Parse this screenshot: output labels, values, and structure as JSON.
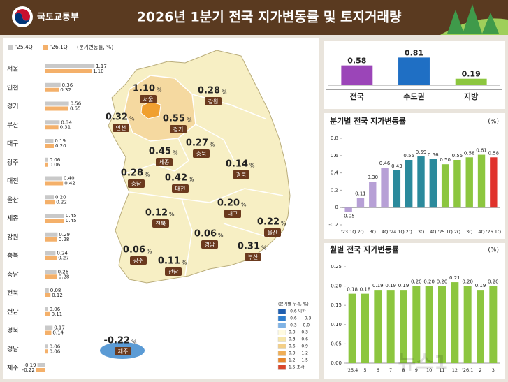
{
  "header": {
    "org": "국토교통부",
    "title": "2026년 1분기 전국 지가변동률 및 토지거래량"
  },
  "watermark": "뉴스1",
  "chart_data": [
    {
      "type": "hbar",
      "legend_note": "(분기변동률, %)",
      "categories": [
        "서울",
        "인천",
        "경기",
        "부산",
        "대구",
        "광주",
        "대전",
        "울산",
        "세종",
        "강원",
        "충북",
        "충남",
        "전북",
        "전남",
        "경북",
        "경남",
        "제주"
      ],
      "xlim": [
        -0.3,
        1.2
      ],
      "series": [
        {
          "name": "'25.4Q",
          "color": "#c9c9c9",
          "values": [
            1.17,
            0.36,
            0.56,
            0.34,
            0.19,
            0.06,
            0.4,
            0.2,
            0.45,
            0.29,
            0.24,
            0.26,
            0.08,
            0.06,
            0.17,
            0.06,
            -0.19
          ],
          "value_labels": [
            "1.17",
            "0.36",
            "0.56",
            "0.34",
            "0.19",
            "0.06",
            "0.40",
            "0.20",
            "0.45",
            "0.29",
            "0.24",
            "0.26",
            "0.08",
            "0.06",
            "0.17",
            "0.06",
            "-0.19"
          ]
        },
        {
          "name": "'26.1Q",
          "color": "#f4b06a",
          "values": [
            1.1,
            0.32,
            0.55,
            0.31,
            0.2,
            0.06,
            0.42,
            0.22,
            0.45,
            0.28,
            0.27,
            0.28,
            0.12,
            0.11,
            0.14,
            0.06,
            -0.22
          ],
          "value_labels": [
            "1.10",
            "0.32",
            "0.55",
            "0.31",
            "0.20",
            "0.06",
            "0.42",
            "0.22",
            "0.45",
            "0.28",
            "0.27",
            "0.28",
            "0.12",
            "0.11",
            "0.14",
            "0.06",
            "-0.22"
          ]
        }
      ]
    },
    {
      "type": "bar",
      "categories": [
        "전국",
        "수도권",
        "지방"
      ],
      "values": [
        0.58,
        0.81,
        0.19
      ],
      "ylim": [
        0,
        0.9
      ],
      "colors": [
        "#9b45b8",
        "#1f6fc4",
        "#8cc63f"
      ]
    },
    {
      "type": "bar",
      "title": "분기별 전국 지가변동률",
      "unit": "(%)",
      "categories": [
        "'23.1Q",
        "2Q",
        "3Q",
        "4Q",
        "'24.1Q",
        "2Q",
        "3Q",
        "4Q",
        "'25.1Q",
        "2Q",
        "3Q",
        "4Q",
        "'26.1Q"
      ],
      "values": [
        -0.05,
        0.11,
        0.3,
        0.46,
        0.43,
        0.55,
        0.59,
        0.56,
        0.5,
        0.55,
        0.58,
        0.61,
        0.58
      ],
      "value_labels": [
        "-0.05",
        "0.11",
        "0.30",
        "0.46",
        "0.43",
        "0.55",
        "0.59",
        "0.56",
        "0.50",
        "0.55",
        "0.58",
        "0.61",
        "0.58"
      ],
      "colors": [
        "#b7a0d6",
        "#b7a0d6",
        "#b7a0d6",
        "#b7a0d6",
        "#2b8a9c",
        "#2b8a9c",
        "#2b8a9c",
        "#2b8a9c",
        "#8cc63f",
        "#8cc63f",
        "#8cc63f",
        "#8cc63f",
        "#e0322c"
      ],
      "ylim": [
        -0.2,
        0.8
      ],
      "yticks": [
        -0.2,
        0,
        0.2,
        0.4,
        0.6,
        0.8
      ]
    },
    {
      "type": "bar",
      "title": "월별 전국 지가변동률",
      "unit": "(%)",
      "categories": [
        "'25.4",
        "5",
        "6",
        "7",
        "8",
        "9",
        "10",
        "11",
        "12",
        "'26.1",
        "2",
        "3"
      ],
      "values": [
        0.18,
        0.18,
        0.19,
        0.19,
        0.19,
        0.2,
        0.2,
        0.2,
        0.21,
        0.2,
        0.19,
        0.2
      ],
      "value_labels": [
        "0.18",
        "0.18",
        "0.19",
        "0.19",
        "0.19",
        "0.20",
        "0.20",
        "0.20",
        "0.21",
        "0.20",
        "0.19",
        "0.20"
      ],
      "color": "#8cc63f",
      "ylim": [
        0,
        0.25
      ],
      "yticks": [
        {
          "value": 0,
          "label": "0.00"
        },
        {
          "value": 0.05,
          "label": "0.05"
        },
        {
          "value": 0.1,
          "label": "0.10"
        },
        {
          "value": 0.15,
          "label": "0.15"
        },
        {
          "value": 0.2,
          "label": "0.20"
        },
        {
          "value": 0.25,
          "label": "0.25"
        }
      ]
    }
  ],
  "map": {
    "unit": "%",
    "regions": [
      "서울",
      "강원",
      "인천",
      "경기",
      "세종",
      "충북",
      "경북",
      "충남",
      "대전",
      "대구",
      "전북",
      "경남",
      "울산",
      "부산",
      "광주",
      "전남",
      "제주"
    ],
    "values": [
      1.1,
      0.28,
      0.32,
      0.55,
      0.45,
      0.27,
      0.14,
      0.28,
      0.42,
      0.2,
      0.12,
      0.06,
      0.22,
      0.31,
      0.06,
      0.11,
      -0.22
    ],
    "value_labels": [
      "1.10",
      "0.28",
      "0.32",
      "0.55",
      "0.45",
      "0.27",
      "0.14",
      "0.28",
      "0.42",
      "0.20",
      "0.12",
      "0.06",
      "0.22",
      "0.31",
      "0.06",
      "0.11",
      "-0.22"
    ],
    "legend_title": "(분기별 누계, %)",
    "legend_labels": [
      "-0.6 이하",
      "-0.6 ~ -0.3",
      "-0.3 ~ 0.0",
      "0.0 ~ 0.3",
      "0.3 ~ 0.6",
      "0.6 ~ 0.9",
      "0.9 ~ 1.2",
      "1.2 ~ 1.5",
      "1.5 초과"
    ],
    "legend_colors": [
      "#1f5fb0",
      "#2f7fd0",
      "#7fb3e6",
      "#fffbe0",
      "#f7e6a8",
      "#f4cf86",
      "#f0ae55",
      "#e8862a",
      "#d9452a"
    ]
  }
}
